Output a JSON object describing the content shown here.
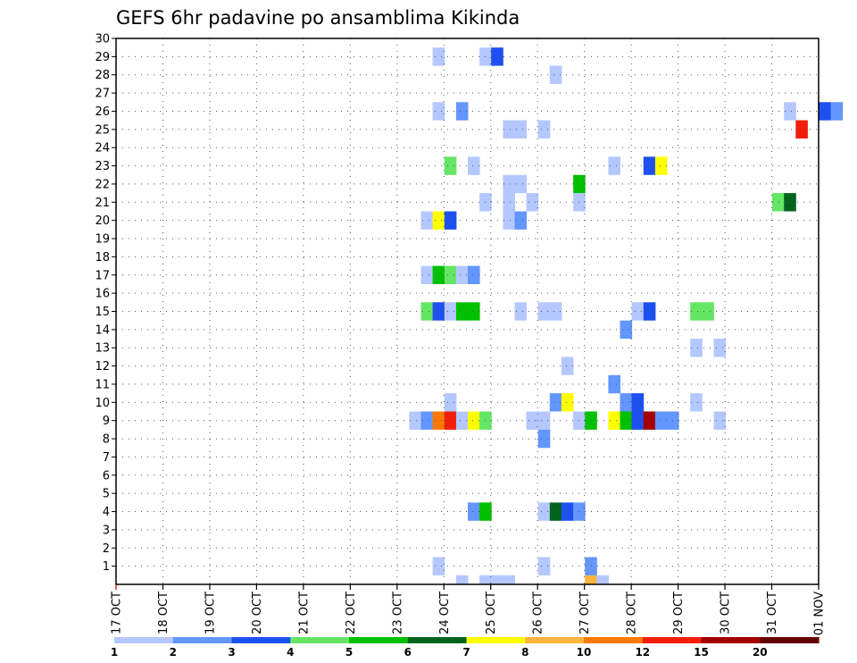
{
  "chart_data": {
    "type": "heatmap",
    "title": "GEFS 6hr padavine po ansamblima Kikinda",
    "x_tick_labels": [
      "17 OCT",
      "18 OCT",
      "19 OCT",
      "20 OCT",
      "21 OCT",
      "22 OCT",
      "23 OCT",
      "24 OCT",
      "25 OCT",
      "26 OCT",
      "27 OCT",
      "28 OCT",
      "29 OCT",
      "30 OCT",
      "31 OCT",
      "01 NOV"
    ],
    "y_tick_labels": [
      "1",
      "2",
      "3",
      "4",
      "5",
      "6",
      "7",
      "8",
      "9",
      "10",
      "11",
      "12",
      "13",
      "14",
      "15",
      "16",
      "17",
      "18",
      "19",
      "20",
      "21",
      "22",
      "23",
      "24",
      "25",
      "26",
      "27",
      "28",
      "29",
      "30"
    ],
    "xlim": [
      0,
      60
    ],
    "ylim": [
      0,
      30
    ],
    "grid": true,
    "legend": {
      "placement": "bottom",
      "labels": [
        "1",
        "2",
        "3",
        "4",
        "5",
        "6",
        "7",
        "8",
        "10",
        "12",
        "15",
        "20"
      ],
      "colors": [
        "#b4c8ff",
        "#6496ff",
        "#1e50f0",
        "#64e664",
        "#00c000",
        "#00641e",
        "#ffff00",
        "#ffb43c",
        "#ff7800",
        "#f01e0a",
        "#a50000",
        "#640000"
      ]
    },
    "cells": [
      {
        "x": 51.5,
        "y": 0,
        "v": 1
      },
      {
        "x": 53.5,
        "y": -1,
        "v": 1
      },
      {
        "x": 55.5,
        "y": -1,
        "v": 1
      },
      {
        "x": 56.5,
        "y": -1,
        "v": 1
      },
      {
        "x": 57.5,
        "y": -1,
        "v": 1
      },
      {
        "x": 64.5,
        "y": -1,
        "v": 8
      },
      {
        "x": 65.5,
        "y": -1,
        "v": 1
      },
      {
        "x": 51.5,
        "y": 28,
        "v": 1
      },
      {
        "x": 55.5,
        "y": 28,
        "v": 1
      },
      {
        "x": 56.5,
        "y": 28,
        "v": 3
      },
      {
        "x": 61.5,
        "y": 27,
        "v": 1
      },
      {
        "x": 51.5,
        "y": 25,
        "v": 1
      },
      {
        "x": 53.5,
        "y": 25,
        "v": 2
      },
      {
        "x": 81.5,
        "y": 25,
        "v": 1
      },
      {
        "x": 84.5,
        "y": 25,
        "v": 3
      },
      {
        "x": 85.5,
        "y": 25,
        "v": 2
      },
      {
        "x": 57.5,
        "y": 24,
        "v": 1
      },
      {
        "x": 58.5,
        "y": 24,
        "v": 1
      },
      {
        "x": 60.5,
        "y": 24,
        "v": 1
      },
      {
        "x": 82.5,
        "y": 24,
        "v": 12
      },
      {
        "x": 52.5,
        "y": 22,
        "v": 4
      },
      {
        "x": 54.5,
        "y": 22,
        "v": 1
      },
      {
        "x": 66.5,
        "y": 22,
        "v": 1
      },
      {
        "x": 69.5,
        "y": 22,
        "v": 3
      },
      {
        "x": 70.5,
        "y": 22,
        "v": 7
      },
      {
        "x": 57.5,
        "y": 21,
        "v": 1
      },
      {
        "x": 58.5,
        "y": 21,
        "v": 1
      },
      {
        "x": 63.5,
        "y": 21,
        "v": 5
      },
      {
        "x": 55.5,
        "y": 20,
        "v": 1
      },
      {
        "x": 57.5,
        "y": 20,
        "v": 1
      },
      {
        "x": 59.5,
        "y": 20,
        "v": 1
      },
      {
        "x": 63.5,
        "y": 20,
        "v": 1
      },
      {
        "x": 80.5,
        "y": 20,
        "v": 4
      },
      {
        "x": 81.5,
        "y": 20,
        "v": 6
      },
      {
        "x": 50.5,
        "y": 19,
        "v": 1
      },
      {
        "x": 51.5,
        "y": 19,
        "v": 7
      },
      {
        "x": 52.5,
        "y": 19,
        "v": 3
      },
      {
        "x": 57.5,
        "y": 19,
        "v": 1
      },
      {
        "x": 58.5,
        "y": 19,
        "v": 2
      },
      {
        "x": 50.5,
        "y": 16,
        "v": 1
      },
      {
        "x": 51.5,
        "y": 16,
        "v": 5
      },
      {
        "x": 52.5,
        "y": 16,
        "v": 4
      },
      {
        "x": 53.5,
        "y": 16,
        "v": 1
      },
      {
        "x": 54.5,
        "y": 16,
        "v": 2
      },
      {
        "x": 50.5,
        "y": 14,
        "v": 4
      },
      {
        "x": 51.5,
        "y": 14,
        "v": 3
      },
      {
        "x": 52.5,
        "y": 14,
        "v": 1
      },
      {
        "x": 53.5,
        "y": 14,
        "v": 5
      },
      {
        "x": 54.5,
        "y": 14,
        "v": 5
      },
      {
        "x": 58.5,
        "y": 14,
        "v": 1
      },
      {
        "x": 60.5,
        "y": 14,
        "v": 1
      },
      {
        "x": 61.5,
        "y": 14,
        "v": 1
      },
      {
        "x": 68.5,
        "y": 14,
        "v": 1
      },
      {
        "x": 69.5,
        "y": 14,
        "v": 3
      },
      {
        "x": 73.5,
        "y": 14,
        "v": 4
      },
      {
        "x": 74.5,
        "y": 14,
        "v": 4
      },
      {
        "x": 67.5,
        "y": 13,
        "v": 2
      },
      {
        "x": 73.5,
        "y": 12,
        "v": 1
      },
      {
        "x": 75.5,
        "y": 12,
        "v": 1
      },
      {
        "x": 62.5,
        "y": 11,
        "v": 1
      },
      {
        "x": 66.5,
        "y": 10,
        "v": 2
      },
      {
        "x": 52.5,
        "y": 9,
        "v": 1
      },
      {
        "x": 61.5,
        "y": 9,
        "v": 2
      },
      {
        "x": 62.5,
        "y": 9,
        "v": 7
      },
      {
        "x": 67.5,
        "y": 9,
        "v": 2
      },
      {
        "x": 68.5,
        "y": 9,
        "v": 3
      },
      {
        "x": 73.5,
        "y": 9,
        "v": 1
      },
      {
        "x": 49.5,
        "y": 8,
        "v": 1
      },
      {
        "x": 50.5,
        "y": 8,
        "v": 2
      },
      {
        "x": 51.5,
        "y": 8,
        "v": 10
      },
      {
        "x": 52.5,
        "y": 8,
        "v": 12
      },
      {
        "x": 53.5,
        "y": 8,
        "v": 1
      },
      {
        "x": 54.5,
        "y": 8,
        "v": 7
      },
      {
        "x": 55.5,
        "y": 8,
        "v": 4
      },
      {
        "x": 59.5,
        "y": 8,
        "v": 1
      },
      {
        "x": 60.5,
        "y": 8,
        "v": 1
      },
      {
        "x": 63.5,
        "y": 8,
        "v": 1
      },
      {
        "x": 64.5,
        "y": 8,
        "v": 5
      },
      {
        "x": 66.5,
        "y": 8,
        "v": 7
      },
      {
        "x": 67.5,
        "y": 8,
        "v": 5
      },
      {
        "x": 68.5,
        "y": 8,
        "v": 3
      },
      {
        "x": 69.5,
        "y": 8,
        "v": 15
      },
      {
        "x": 70.5,
        "y": 8,
        "v": 2
      },
      {
        "x": 71.5,
        "y": 8,
        "v": 2
      },
      {
        "x": 75.5,
        "y": 8,
        "v": 1
      },
      {
        "x": 60.5,
        "y": 7,
        "v": 2
      },
      {
        "x": 54.5,
        "y": 3,
        "v": 2
      },
      {
        "x": 55.5,
        "y": 3,
        "v": 5
      },
      {
        "x": 60.5,
        "y": 3,
        "v": 1
      },
      {
        "x": 61.5,
        "y": 3,
        "v": 6
      },
      {
        "x": 62.5,
        "y": 3,
        "v": 3
      },
      {
        "x": 63.5,
        "y": 3,
        "v": 2
      },
      {
        "x": 60.5,
        "y": 0,
        "v": 1
      },
      {
        "x": 64.5,
        "y": 0,
        "v": 2
      }
    ]
  }
}
